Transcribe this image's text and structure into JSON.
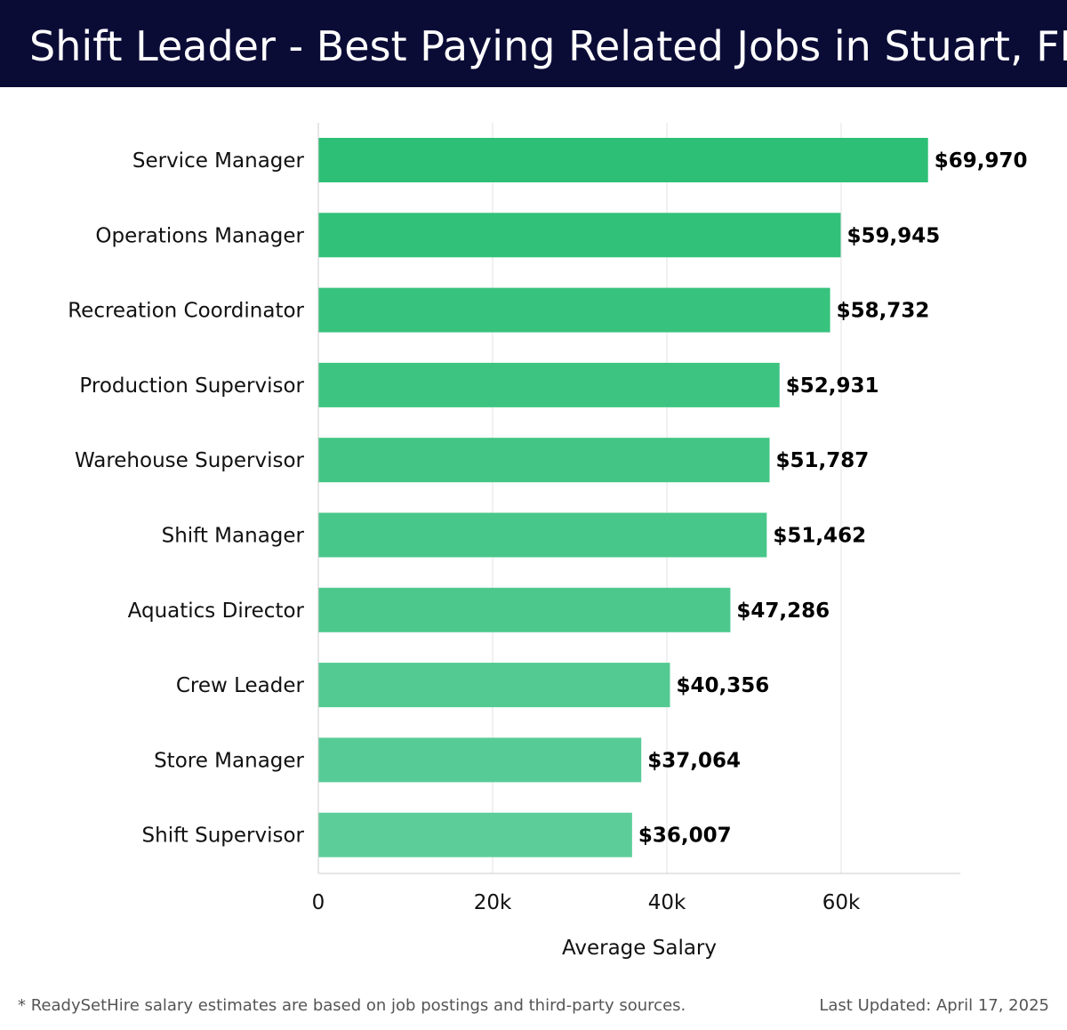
{
  "header": {
    "title": "Shift Leader - Best Paying Related Jobs in Stuart, FL"
  },
  "footer": {
    "note": "* ReadySetHire salary estimates are based on job postings and third-party sources.",
    "updated": "Last Updated: April 17, 2025"
  },
  "colors": {
    "header_bg": "#0b0c36",
    "bar_top": "#2dbf75",
    "bar_bottom": "#5ccd99",
    "gridline": "#e3e3e3"
  },
  "chart_data": {
    "type": "bar",
    "orientation": "horizontal",
    "title": "Shift Leader - Best Paying Related Jobs in Stuart, FL",
    "xlabel": "Average Salary",
    "ylabel": "",
    "xlim": [
      0,
      73500
    ],
    "xticks": [
      0,
      20000,
      40000,
      60000
    ],
    "xtick_labels": [
      "0",
      "20k",
      "40k",
      "60k"
    ],
    "grid": true,
    "categories": [
      "Service Manager",
      "Operations Manager",
      "Recreation Coordinator",
      "Production Supervisor",
      "Warehouse Supervisor",
      "Shift Manager",
      "Aquatics Director",
      "Crew Leader",
      "Store Manager",
      "Shift Supervisor"
    ],
    "values": [
      69970,
      59945,
      58732,
      52931,
      51787,
      51462,
      47286,
      40356,
      37064,
      36007
    ],
    "value_labels": [
      "$69,970",
      "$59,945",
      "$58,732",
      "$52,931",
      "$51,787",
      "$51,462",
      "$47,286",
      "$40,356",
      "$37,064",
      "$36,007"
    ]
  }
}
